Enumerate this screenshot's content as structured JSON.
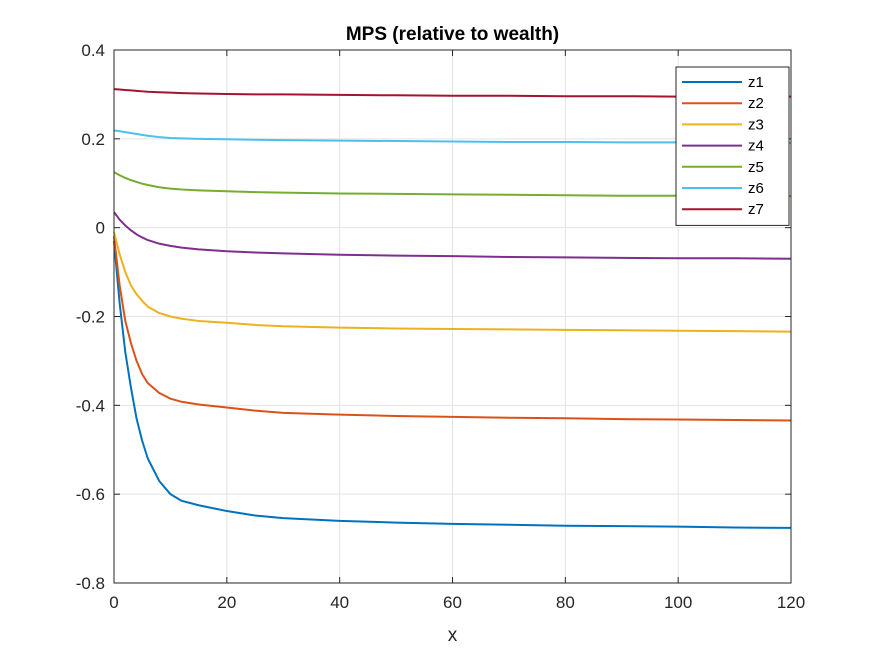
{
  "chart_data": {
    "type": "line",
    "title": "MPS (relative to wealth)",
    "xlabel": "x",
    "ylabel": "",
    "xlim": [
      0,
      120
    ],
    "ylim": [
      -0.8,
      0.4
    ],
    "xticks": [
      0,
      20,
      40,
      60,
      80,
      100,
      120
    ],
    "yticks": [
      -0.8,
      -0.6,
      -0.4,
      -0.2,
      0,
      0.2,
      0.4
    ],
    "xtick_labels": [
      "0",
      "20",
      "40",
      "60",
      "80",
      "100",
      "120"
    ],
    "ytick_labels": [
      "-0.8",
      "-0.6",
      "-0.4",
      "-0.2",
      "0",
      "0.2",
      "0.4"
    ],
    "grid": true,
    "legend_position": "top-right",
    "x": [
      0,
      1,
      2,
      3,
      4,
      5,
      6,
      8,
      10,
      12,
      15,
      20,
      25,
      30,
      40,
      50,
      60,
      70,
      80,
      90,
      100,
      110,
      120
    ],
    "series": [
      {
        "name": "z1",
        "color": "#0072BD",
        "values": [
          -0.03,
          -0.17,
          -0.28,
          -0.36,
          -0.43,
          -0.48,
          -0.52,
          -0.57,
          -0.6,
          -0.615,
          -0.625,
          -0.638,
          -0.648,
          -0.654,
          -0.66,
          -0.664,
          -0.667,
          -0.669,
          -0.671,
          -0.672,
          -0.673,
          -0.675,
          -0.676
        ]
      },
      {
        "name": "z2",
        "color": "#D95319",
        "values": [
          -0.02,
          -0.13,
          -0.21,
          -0.26,
          -0.3,
          -0.33,
          -0.35,
          -0.372,
          -0.385,
          -0.392,
          -0.398,
          -0.405,
          -0.412,
          -0.417,
          -0.421,
          -0.424,
          -0.426,
          -0.428,
          -0.429,
          -0.431,
          -0.432,
          -0.433,
          -0.434
        ]
      },
      {
        "name": "z3",
        "color": "#EDB120",
        "values": [
          -0.01,
          -0.06,
          -0.1,
          -0.13,
          -0.15,
          -0.165,
          -0.178,
          -0.192,
          -0.2,
          -0.205,
          -0.21,
          -0.214,
          -0.219,
          -0.222,
          -0.225,
          -0.227,
          -0.228,
          -0.229,
          -0.23,
          -0.231,
          -0.232,
          -0.233,
          -0.234
        ]
      },
      {
        "name": "z4",
        "color": "#7E2F8E",
        "values": [
          0.035,
          0.018,
          0.005,
          -0.006,
          -0.015,
          -0.022,
          -0.028,
          -0.036,
          -0.041,
          -0.045,
          -0.049,
          -0.053,
          -0.056,
          -0.058,
          -0.061,
          -0.063,
          -0.064,
          -0.066,
          -0.067,
          -0.068,
          -0.069,
          -0.069,
          -0.07
        ]
      },
      {
        "name": "z5",
        "color": "#77AC30",
        "values": [
          0.125,
          0.118,
          0.112,
          0.107,
          0.103,
          0.099,
          0.096,
          0.091,
          0.088,
          0.086,
          0.084,
          0.082,
          0.08,
          0.079,
          0.077,
          0.076,
          0.075,
          0.074,
          0.073,
          0.072,
          0.072,
          0.071,
          0.071
        ]
      },
      {
        "name": "z6",
        "color": "#4DBEEE",
        "values": [
          0.219,
          0.217,
          0.215,
          0.213,
          0.211,
          0.209,
          0.207,
          0.204,
          0.202,
          0.201,
          0.2,
          0.199,
          0.198,
          0.197,
          0.196,
          0.195,
          0.194,
          0.193,
          0.193,
          0.192,
          0.192,
          0.191,
          0.191
        ]
      },
      {
        "name": "z7",
        "color": "#A2142F",
        "values": [
          0.312,
          0.311,
          0.31,
          0.309,
          0.308,
          0.307,
          0.306,
          0.305,
          0.304,
          0.303,
          0.302,
          0.301,
          0.3,
          0.3,
          0.299,
          0.298,
          0.297,
          0.297,
          0.296,
          0.296,
          0.295,
          0.295,
          0.295
        ]
      }
    ]
  }
}
